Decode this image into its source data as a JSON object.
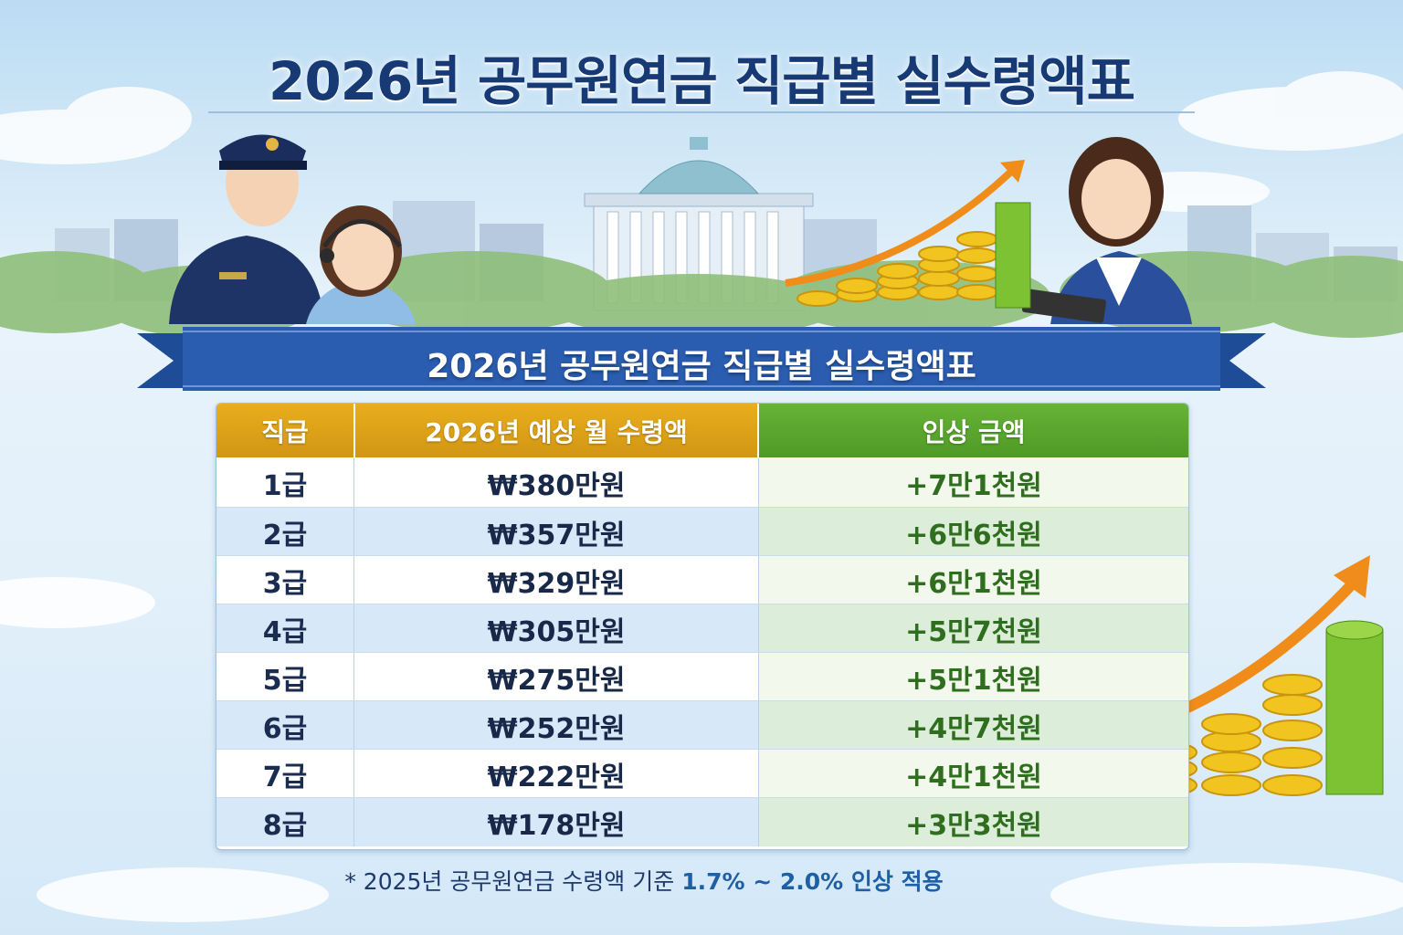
{
  "title": "2026년 공무원연금 직급별 실수령액표",
  "banner_title": "2026년 공무원연금 직급별 실수령액표",
  "table": {
    "headers": [
      "직급",
      "2026년 예상 월 수령액",
      "인상 금액"
    ],
    "rows": [
      {
        "grade": "1급",
        "amount": "₩380만원",
        "increase": "+7만1천원"
      },
      {
        "grade": "2급",
        "amount": "₩357만원",
        "increase": "+6만6천원"
      },
      {
        "grade": "3급",
        "amount": "₩329만원",
        "increase": "+6만1천원"
      },
      {
        "grade": "4급",
        "amount": "₩305만원",
        "increase": "+5만7천원"
      },
      {
        "grade": "5급",
        "amount": "₩275만원",
        "increase": "+5만1천원"
      },
      {
        "grade": "6급",
        "amount": "₩252만원",
        "increase": "+4만7천원"
      },
      {
        "grade": "7급",
        "amount": "₩222만원",
        "increase": "+4만1천원"
      },
      {
        "grade": "8급",
        "amount": "₩178만원",
        "increase": "+3만3천원"
      }
    ]
  },
  "footnote": {
    "prefix": "* 2025년 공무원연금 수령액 기준 ",
    "highlight": "1.7% ~ 2.0% 인상 적용"
  },
  "colors": {
    "title": "#173a75",
    "header_gold": "#e0a41a",
    "header_green": "#5aa62e",
    "ribbon_blue": "#2a5db0"
  },
  "icons": [
    "police-officer-illustration",
    "call-center-agent-illustration",
    "office-worker-illustration",
    "government-building-illustration",
    "coin-stack-growth-icon",
    "up-arrow-icon"
  ]
}
